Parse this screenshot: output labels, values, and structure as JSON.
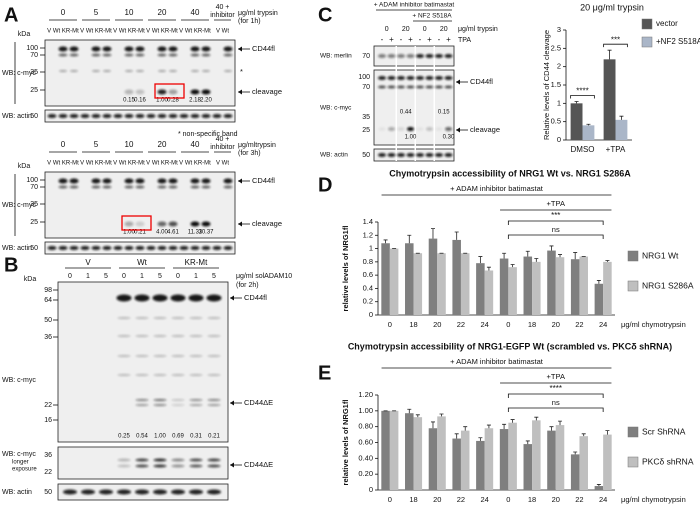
{
  "figure": {
    "A": {
      "letter": "A",
      "footnote": "* non-specific band",
      "blots": [
        {
          "doses": [
            0,
            5,
            10,
            20,
            40
          ],
          "inhibitor_dose": "40 +",
          "inhibitor": "inhibitor",
          "dose_unit": "μg/ml trypsin",
          "dose_time": "(for 1h)",
          "lanes": [
            "V Wt KR-Mt",
            "V Wt KR-Mt",
            "V Wt KR-Mt",
            "V Wt KR-Mt",
            "V Wt KR-Mt",
            "V Wt"
          ],
          "kda": "kDa",
          "cmyc_markers": [
            100,
            70,
            35,
            25
          ],
          "actin_marker": 50,
          "cmyc_label": "WB: c-myc",
          "actin_label": "WB: actin",
          "band_labels": [
            "CD44fl",
            "*",
            "cleavage"
          ],
          "quant": [
            "0.15",
            "0.16",
            "1.00",
            "0.28",
            "2.18",
            "2.20"
          ]
        },
        {
          "doses": [
            0,
            5,
            10,
            20,
            40
          ],
          "inhibitor_dose": "40 +",
          "inhibitor": "inhibitor",
          "dose_unit": "μg/mltrypsin",
          "dose_time": "(for 3h)",
          "lanes": [
            "V Wt KR-Mt",
            "V Wt KR-Mt",
            "V Wt KR-Mt",
            "V Wt KR-Mt",
            "V Wt KR-Mt",
            "V Wt"
          ],
          "kda": "kDa",
          "cmyc_markers": [
            100,
            70,
            35,
            25
          ],
          "actin_marker": 50,
          "cmyc_label": "WB: c-myc",
          "actin_label": "WB: actin",
          "band_labels": [
            "CD44fl",
            "cleavage"
          ],
          "quant": [
            "1.00",
            "0.21",
            "4.00",
            "4.61",
            "11.33",
            "10.37"
          ]
        }
      ]
    },
    "B": {
      "letter": "B",
      "groups": [
        "V",
        "Wt",
        "KR-Mt"
      ],
      "doses": [
        0,
        1,
        5
      ],
      "dose_unit": "μg/ml solADAM10",
      "dose_time": "(for 2h)",
      "kda": "kDa",
      "cmyc_markers": [
        98,
        64,
        50,
        36,
        22,
        16
      ],
      "long_markers": [
        36,
        22
      ],
      "actin_marker": 50,
      "cmyc_label": "WB: c-myc",
      "long_label": "WB: c-myc",
      "long_note1": "longer",
      "long_note2": "exposure",
      "actin_label": "WB: actin",
      "band_labels": [
        "CD44fl",
        "CD44ΔE",
        "CD44ΔE"
      ],
      "quant": [
        "0.25",
        "0.54",
        "1.00",
        "0.69",
        "0.31",
        "0.21"
      ]
    },
    "C": {
      "letter": "C",
      "inhibitor": "+ ADAM inhibitor batimastat",
      "nf2": "+ NF2 S518A",
      "doses": [
        0,
        20,
        0,
        20
      ],
      "dose_unit": "μg/ml trypsin",
      "tpa_signs": [
        "-",
        "+",
        "-",
        "+",
        "-",
        "+",
        "-",
        "+"
      ],
      "tpa": "TPA",
      "merlin_marker": 70,
      "cmyc_markers": [
        100,
        70,
        35,
        25
      ],
      "actin_marker": 50,
      "merlin_label": "WB: merlin",
      "cmyc_label": "WB: c-myc",
      "actin_label": "WB: actin",
      "band_labels": [
        "CD44fl",
        "cleavage"
      ],
      "quant": [
        "0.44",
        "1.00",
        "0.15",
        "0.30"
      ]
    },
    "D": {
      "letter": "D"
    },
    "E": {
      "letter": "E"
    }
  },
  "chart_data": [
    {
      "type": "bar",
      "title": "20 μg/ml trypsin",
      "y_label": "Relative levels of CD44 cleavage",
      "categories": [
        "DMSO",
        "+TPA"
      ],
      "series": [
        {
          "name": "vector",
          "color": "#555555",
          "values": [
            1.0,
            2.2
          ],
          "errors": [
            0.05,
            0.25
          ]
        },
        {
          "name": "+NF2 S518A",
          "color": "#aab6c8",
          "values": [
            0.4,
            0.55
          ],
          "errors": [
            0.03,
            0.1
          ]
        }
      ],
      "ylim": [
        0,
        3
      ],
      "yticks": [
        0,
        0.5,
        1,
        1.5,
        2,
        2.5,
        3
      ],
      "sig_labels": [
        "****",
        "***"
      ]
    },
    {
      "type": "bar",
      "title": "Chymotrypsin accessibility of NRG1 Wt vs. NRG1 S286A",
      "y_label": "relative levels of NRG1fl",
      "x_label": "μg/ml chymotrypsin",
      "categories": [
        "0",
        "18",
        "20",
        "22",
        "24",
        "0",
        "18",
        "20",
        "22",
        "24"
      ],
      "series": [
        {
          "name": "NRG1 Wt",
          "color": "#7f7f7f",
          "values": [
            1.08,
            1.08,
            1.15,
            1.13,
            0.78,
            0.85,
            0.88,
            0.97,
            0.84,
            0.47
          ],
          "errors": [
            0.05,
            0.12,
            0.15,
            0.12,
            0.1,
            0.08,
            0.08,
            0.07,
            0.1,
            0.05
          ]
        },
        {
          "name": "NRG1 S286A",
          "color": "#bfbfbf",
          "values": [
            1.0,
            0.93,
            0.93,
            0.93,
            0.67,
            0.72,
            0.8,
            0.87,
            0.88,
            0.8
          ],
          "errors": [
            0,
            0,
            0,
            0,
            0.05,
            0.04,
            0.05,
            0.04,
            0,
            0.02
          ]
        }
      ],
      "ylim": [
        0,
        1.4
      ],
      "yticks": [
        0,
        0.2,
        0.4,
        0.6,
        0.8,
        1,
        1.2,
        1.4
      ],
      "inhibitor_label": "+ ADAM inhibitor batimastat",
      "tpa_label": "+TPA",
      "sig_label": "***",
      "ns_label": "ns"
    },
    {
      "type": "bar",
      "title": "Chymotrypsin accessibility of NRG1-EGFP Wt (scrambled vs. PKCδ shRNA)",
      "y_label": "relative levels of NRG1fl",
      "x_label": "μg/ml chymotrypsin",
      "categories": [
        "0",
        "18",
        "20",
        "22",
        "24",
        "0",
        "18",
        "20",
        "22",
        "24"
      ],
      "series": [
        {
          "name": "Scr ShRNA",
          "color": "#7f7f7f",
          "values": [
            1.0,
            0.97,
            0.78,
            0.65,
            0.62,
            0.77,
            0.58,
            0.75,
            0.45,
            0.05
          ],
          "errors": [
            0,
            0.05,
            0.08,
            0.06,
            0.04,
            0.06,
            0.04,
            0.05,
            0.03,
            0.02
          ]
        },
        {
          "name": "PKCδ shRNA",
          "color": "#bfbfbf",
          "values": [
            1.0,
            0.92,
            0.93,
            0.75,
            0.78,
            0.85,
            0.88,
            0.82,
            0.68,
            0.7
          ],
          "errors": [
            0,
            0.03,
            0.03,
            0.05,
            0.04,
            0.04,
            0.04,
            0.05,
            0.03,
            0.05
          ]
        }
      ],
      "ylim": [
        0,
        1.2
      ],
      "yticks": [
        0,
        {
          "value": 0.2,
          "label": "0.20"
        },
        {
          "value": 0.4,
          "label": "0.40"
        },
        {
          "value": 0.6,
          "label": "0.60"
        },
        {
          "value": 0.8,
          "label": "0.80"
        },
        {
          "value": 1,
          "label": "1.00"
        },
        {
          "value": 1.2,
          "label": "1.20"
        }
      ],
      "inhibitor_label": "+ ADAM inhibitor batimastat",
      "tpa_label": "+TPA",
      "sig_label": "****",
      "ns_label": "ns"
    }
  ]
}
